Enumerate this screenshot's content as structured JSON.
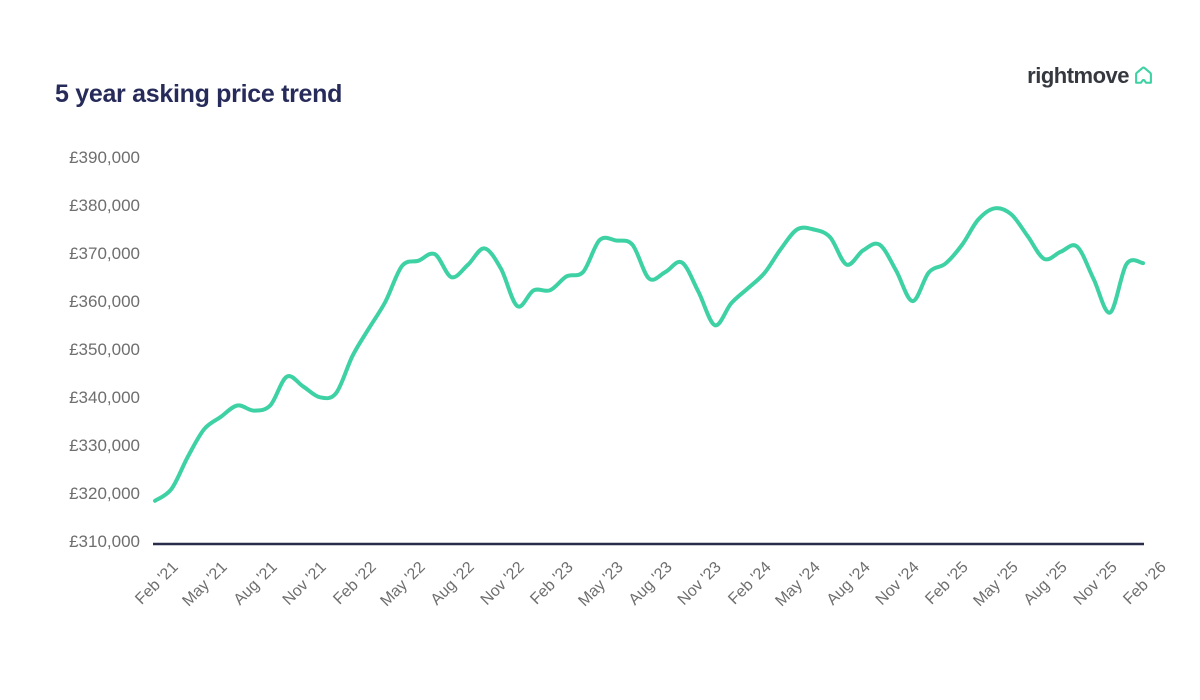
{
  "header": {
    "title": "5 year asking price trend",
    "logo_text": "rightmove"
  },
  "colors": {
    "background": "#ffffff",
    "title": "#262b59",
    "line": "#3ed1a4",
    "axis": "#292d49",
    "tick_label": "#6e6e6e",
    "logo_text": "#35393f",
    "logo_icon": "#3ed1a4"
  },
  "chart_data": {
    "type": "line",
    "title": "5 year asking price trend",
    "unit": "GBP average asking price",
    "legend": "none",
    "grid": "off",
    "ylim": [
      310000,
      390000
    ],
    "y_step": 10000,
    "y_tick_labels": [
      "£390,000",
      "£380,000",
      "£370,000",
      "£360,000",
      "£350,000",
      "£340,000",
      "£330,000",
      "£320,000",
      "£310,000"
    ],
    "x_tick_labels": [
      "Feb '21",
      "May '21",
      "Aug '21",
      "Nov '21",
      "Feb '22",
      "May '22",
      "Aug '22",
      "Nov '22",
      "Feb '23",
      "May '23",
      "Aug '23",
      "Nov '23",
      "Feb '24",
      "May '24",
      "Aug '24",
      "Nov '24",
      "Feb '25",
      "May '25",
      "Aug '25",
      "Nov '25",
      "Feb '26"
    ],
    "series": [
      {
        "name": "Average asking price",
        "interval": "monthly",
        "start": "Feb '21",
        "end": "Feb '26",
        "values": [
          318580,
          321064,
          327797,
          333564,
          336073,
          338447,
          337371,
          338462,
          344445,
          342401,
          340167,
          341019,
          348804,
          354564,
          360101,
          367501,
          368614,
          369968,
          365173,
          367760,
          371158,
          366999,
          359137,
          362438,
          362452,
          365357,
          366247,
          372894,
          372812,
          371907,
          364895,
          366281,
          368231,
          362143,
          355177,
          359748,
          362839,
          366000,
          371000,
          375131,
          375110,
          373493,
          367785,
          370759,
          371958,
          366592,
          360197,
          366189,
          367994,
          371870,
          377182,
          379517,
          378240,
          373709,
          368977,
          370450,
          371550,
          364800,
          357800,
          367900,
          368100
        ]
      }
    ]
  }
}
